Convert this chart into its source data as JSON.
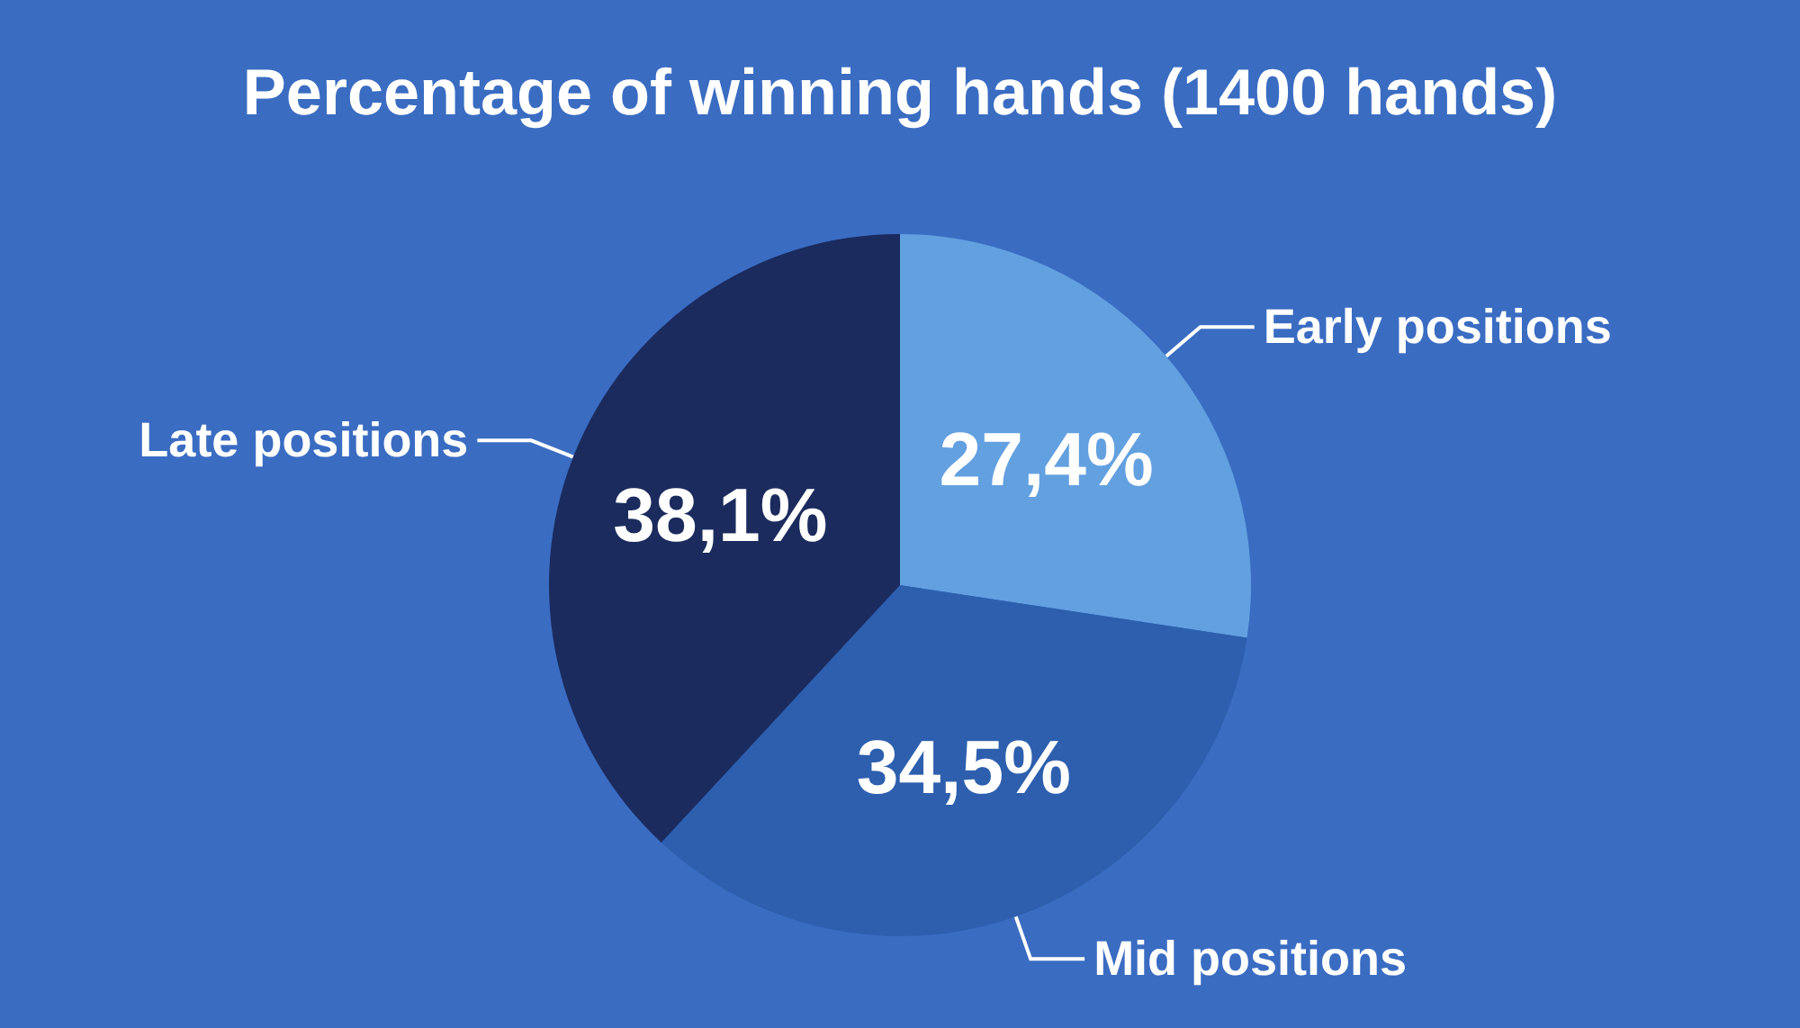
{
  "chart_data": {
    "type": "pie",
    "title": "Percentage of winning hands (1400 hands)",
    "categories": [
      "Early positions",
      "Mid positions",
      "Late positions"
    ],
    "values": [
      27.4,
      34.5,
      38.1
    ],
    "colors": [
      "#62a0e0",
      "#2d5fae",
      "#1b2b5e"
    ],
    "value_labels": [
      "27,4%",
      "34,5%",
      "38,1%"
    ],
    "legend": false
  }
}
